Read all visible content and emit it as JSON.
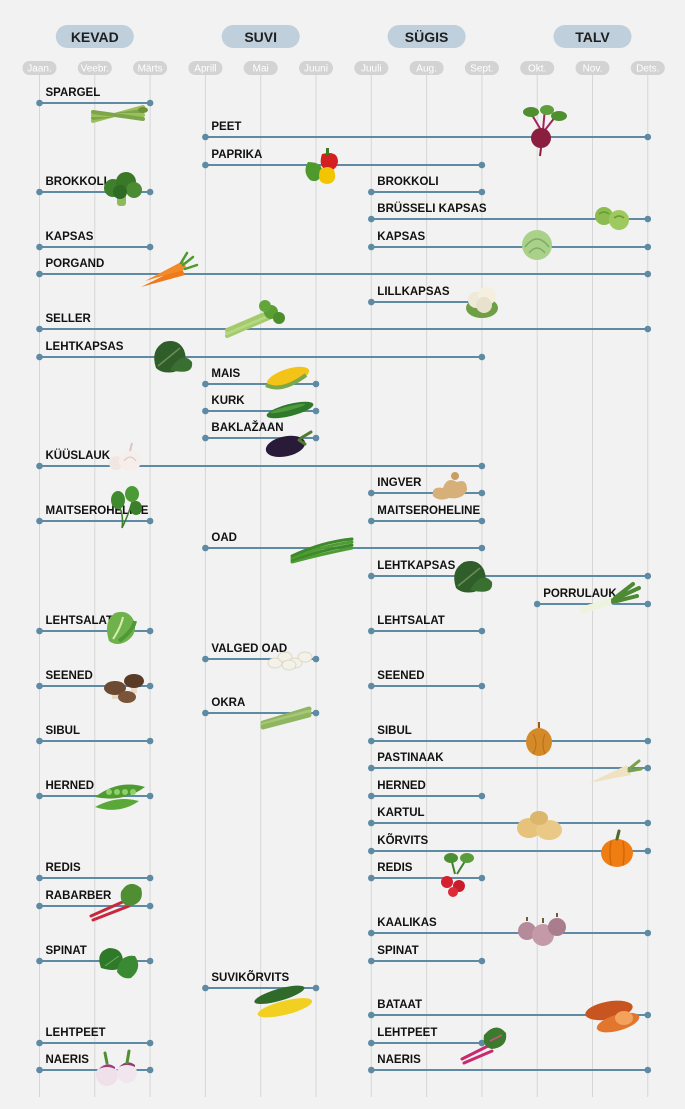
{
  "colors": {
    "background": "#f2f2f2",
    "season_pill": "#bfd0dc",
    "month_pill": "#d3d3d3",
    "gridline": "#d6d6d6",
    "range_line": "#5e8aa3",
    "endpoint": "#5e8aa3",
    "label": "#111111"
  },
  "chart_data": {
    "type": "timeline",
    "title": "",
    "seasons": [
      {
        "name": "KEVAD",
        "months": [
          "Jaan.",
          "Veebr.",
          "Märts"
        ]
      },
      {
        "name": "SUVI",
        "months": [
          "Aprill",
          "Mai",
          "Juuni"
        ]
      },
      {
        "name": "SÜGIS",
        "months": [
          "Juuli",
          "Aug.",
          "Sept."
        ]
      },
      {
        "name": "TALV",
        "months": [
          "Okt.",
          "Nov.",
          "Dets."
        ]
      }
    ],
    "months": [
      "Jaan.",
      "Veebr.",
      "Märts",
      "Aprill",
      "Mai",
      "Juuni",
      "Juuli",
      "Aug.",
      "Sept.",
      "Okt.",
      "Nov.",
      "Dets."
    ],
    "rows": [
      [
        {
          "label": "SPARGEL",
          "start": "Jaan.",
          "end": "Märts",
          "icon": "asparagus"
        }
      ],
      [
        {
          "label": "PEET",
          "start": "Aprill",
          "end": "Dets.",
          "icon": "beet"
        }
      ],
      [
        {
          "label": "PAPRIKA",
          "start": "Aprill",
          "end": "Sept.",
          "icon": "peppers"
        }
      ],
      [
        {
          "label": "BROKKOLI",
          "start": "Jaan.",
          "end": "Märts",
          "icon": "broccoli"
        },
        {
          "label": "BROKKOLI",
          "start": "Juuli",
          "end": "Sept.",
          "icon": ""
        }
      ],
      [
        {
          "label": "BRÜSSELI KAPSAS",
          "start": "Juuli",
          "end": "Dets.",
          "icon": "brussels-sprouts"
        }
      ],
      [
        {
          "label": "KAPSAS",
          "start": "Jaan.",
          "end": "Märts",
          "icon": ""
        },
        {
          "label": "KAPSAS",
          "start": "Juuli",
          "end": "Dets.",
          "icon": "cabbage"
        }
      ],
      [
        {
          "label": "PORGAND",
          "start": "Jaan.",
          "end": "Dets.",
          "icon": "carrots"
        }
      ],
      [
        {
          "label": "LILLKAPSAS",
          "start": "Juuli",
          "end": "Sept.",
          "icon": "cauliflower"
        }
      ],
      [
        {
          "label": "SELLER",
          "start": "Jaan.",
          "end": "Dets.",
          "icon": "celery"
        }
      ],
      [
        {
          "label": "LEHTKAPSAS",
          "start": "Jaan.",
          "end": "Sept.",
          "icon": "kale"
        }
      ],
      [
        {
          "label": "MAIS",
          "start": "Aprill",
          "end": "Juuni",
          "icon": "corn"
        }
      ],
      [
        {
          "label": "KURK",
          "start": "Aprill",
          "end": "Juuni",
          "icon": "cucumber"
        }
      ],
      [
        {
          "label": "BAKLAŽAAN",
          "start": "Aprill",
          "end": "Juuni",
          "icon": "eggplant"
        }
      ],
      [
        {
          "label": "KÜÜSLAUK",
          "start": "Jaan.",
          "end": "Sept.",
          "icon": "garlic"
        }
      ],
      [
        {
          "label": "INGVER",
          "start": "Juuli",
          "end": "Sept.",
          "icon": "ginger"
        }
      ],
      [
        {
          "label": "MAITSEROHELINE",
          "start": "Jaan.",
          "end": "Märts",
          "icon": "herbs"
        },
        {
          "label": "MAITSEROHELINE",
          "start": "Juuli",
          "end": "Sept.",
          "icon": ""
        }
      ],
      [
        {
          "label": "OAD",
          "start": "Aprill",
          "end": "Sept.",
          "icon": "green-beans"
        }
      ],
      [
        {
          "label": "LEHTKAPSAS",
          "start": "Juuli",
          "end": "Dets.",
          "icon": "kale"
        }
      ],
      [
        {
          "label": "PORRULAUK",
          "start": "Okt.",
          "end": "Dets.",
          "icon": "leek"
        }
      ],
      [
        {
          "label": "LEHTSALAT",
          "start": "Jaan.",
          "end": "Märts",
          "icon": "lettuce"
        },
        {
          "label": "LEHTSALAT",
          "start": "Juuli",
          "end": "Sept.",
          "icon": ""
        }
      ],
      [
        {
          "label": "VALGED OAD",
          "start": "Aprill",
          "end": "Juuni",
          "icon": "white-beans"
        }
      ],
      [
        {
          "label": "SEENED",
          "start": "Jaan.",
          "end": "Märts",
          "icon": "mushrooms"
        },
        {
          "label": "SEENED",
          "start": "Juuli",
          "end": "Sept.",
          "icon": ""
        }
      ],
      [
        {
          "label": "OKRA",
          "start": "Aprill",
          "end": "Juuni",
          "icon": "okra"
        }
      ],
      [
        {
          "label": "SIBUL",
          "start": "Jaan.",
          "end": "Märts",
          "icon": ""
        },
        {
          "label": "SIBUL",
          "start": "Juuli",
          "end": "Dets.",
          "icon": "onion"
        }
      ],
      [
        {
          "label": "PASTINAAK",
          "start": "Juuli",
          "end": "Dets.",
          "icon": "parsnip"
        }
      ],
      [
        {
          "label": "HERNED",
          "start": "Jaan.",
          "end": "Märts",
          "icon": "peas"
        },
        {
          "label": "HERNED",
          "start": "Juuli",
          "end": "Sept.",
          "icon": ""
        }
      ],
      [
        {
          "label": "KARTUL",
          "start": "Juuli",
          "end": "Dets.",
          "icon": "potatoes"
        }
      ],
      [
        {
          "label": "KÕRVITS",
          "start": "Juuli",
          "end": "Dets.",
          "icon": "pumpkin"
        }
      ],
      [
        {
          "label": "REDIS",
          "start": "Jaan.",
          "end": "Märts",
          "icon": ""
        },
        {
          "label": "REDIS",
          "start": "Juuli",
          "end": "Sept.",
          "icon": "radishes"
        }
      ],
      [
        {
          "label": "RABARBER",
          "start": "Jaan.",
          "end": "Märts",
          "icon": "rhubarb"
        }
      ],
      [
        {
          "label": "KAALIKAS",
          "start": "Juuli",
          "end": "Dets.",
          "icon": "rutabaga"
        }
      ],
      [
        {
          "label": "SPINAT",
          "start": "Jaan.",
          "end": "Märts",
          "icon": "spinach"
        },
        {
          "label": "SPINAT",
          "start": "Juuli",
          "end": "Sept.",
          "icon": ""
        }
      ],
      [
        {
          "label": "SUVIKÕRVITS",
          "start": "Aprill",
          "end": "Juuni",
          "icon": "zucchini"
        }
      ],
      [
        {
          "label": "BATAAT",
          "start": "Juuli",
          "end": "Dets.",
          "icon": "sweet-potato"
        }
      ],
      [
        {
          "label": "LEHTPEET",
          "start": "Jaan.",
          "end": "Märts",
          "icon": ""
        },
        {
          "label": "LEHTPEET",
          "start": "Juuli",
          "end": "Sept.",
          "icon": "chard"
        }
      ],
      [
        {
          "label": "NAERIS",
          "start": "Jaan.",
          "end": "Märts",
          "icon": "turnips"
        },
        {
          "label": "NAERIS",
          "start": "Juuli",
          "end": "Dets.",
          "icon": ""
        }
      ]
    ]
  }
}
